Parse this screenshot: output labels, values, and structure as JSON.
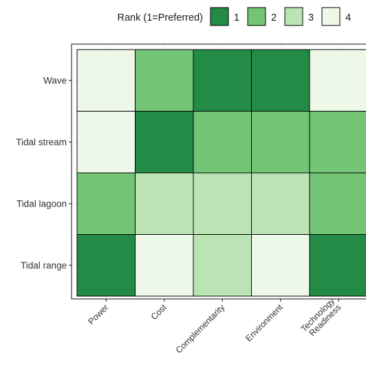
{
  "chart_data": {
    "type": "heatmap",
    "title": "",
    "xlabel": "",
    "ylabel": "",
    "x_categories": [
      "Power",
      "Cost",
      "Complementarity",
      "Environment",
      [
        "Technology",
        "Readiness"
      ]
    ],
    "y_categories": [
      "Wave",
      "Tidal stream",
      "Tidal lagoon",
      "Tidal range"
    ],
    "values": [
      [
        4,
        2,
        1,
        1,
        4
      ],
      [
        4,
        1,
        2,
        2,
        2
      ],
      [
        2,
        3,
        3,
        3,
        2
      ],
      [
        1,
        4,
        3,
        4,
        1
      ]
    ],
    "legend": {
      "title": "Rank (1=Preferred)",
      "position": "top",
      "entries": [
        {
          "label": "1",
          "value": 1
        },
        {
          "label": "2",
          "value": 2
        },
        {
          "label": "3",
          "value": 3
        },
        {
          "label": "4",
          "value": 4
        }
      ]
    },
    "colors": {
      "1": "#238b45",
      "2": "#74c476",
      "3": "#bae4b3",
      "4": "#edf8e9"
    },
    "grid": true
  }
}
